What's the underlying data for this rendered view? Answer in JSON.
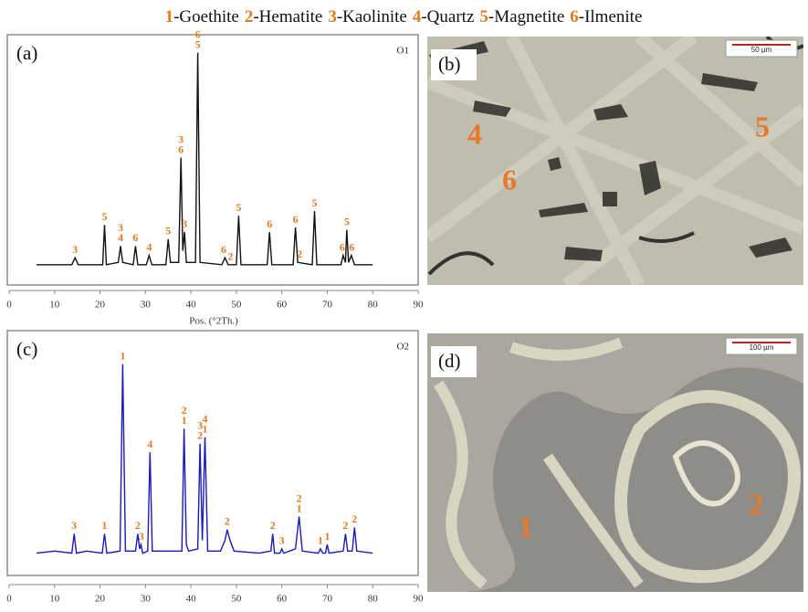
{
  "legend": [
    {
      "number": "1",
      "name": "-Goethite"
    },
    {
      "number": "2",
      "name": "-Hematite"
    },
    {
      "number": "3",
      "name": "-Kaolinite"
    },
    {
      "number": "4",
      "name": "-Quartz"
    },
    {
      "number": "5",
      "name": "-Magnetite"
    },
    {
      "number": "6",
      "name": "-Ilmenite"
    }
  ],
  "chart_data": [
    {
      "type": "line",
      "panel": "(a)",
      "sample": "O1",
      "x_label": "Pos. (°2Th.)",
      "color": "#111111",
      "label_color": "#e07b20",
      "xlim": [
        0,
        90
      ],
      "xticks": [
        0,
        10,
        20,
        30,
        40,
        50,
        60,
        70,
        80,
        90
      ],
      "ylim": [
        0,
        100
      ],
      "x": [
        6,
        10,
        13.8,
        14.5,
        15.2,
        20,
        20.6,
        21,
        21.4,
        24,
        24.5,
        25,
        27.3,
        27.8,
        28.3,
        30.2,
        30.8,
        31.4,
        34.5,
        35,
        35.5,
        37.3,
        37.8,
        38.2,
        38.6,
        39,
        41,
        41.5,
        42,
        46.8,
        47.5,
        48.2,
        50,
        50.5,
        51,
        56.8,
        57.3,
        57.8,
        62.5,
        63,
        63.5,
        66.7,
        67.2,
        67.7,
        73,
        73.5,
        74,
        74.3,
        74.7,
        75.3,
        76,
        80
      ],
      "values": [
        4,
        4,
        4,
        7,
        4,
        4,
        4,
        21,
        4,
        5,
        12,
        5,
        4,
        12,
        4,
        4,
        8,
        4,
        4,
        15,
        5,
        5,
        50,
        10,
        18,
        5,
        5,
        95,
        5,
        4,
        7,
        4,
        4,
        25,
        4,
        4,
        18,
        4,
        4,
        20,
        5,
        4,
        27,
        4,
        4,
        8,
        5,
        19,
        5,
        8,
        4,
        4
      ],
      "peak_labels": [
        {
          "x": 14.5,
          "labels": [
            "3"
          ]
        },
        {
          "x": 21,
          "labels": [
            "5"
          ]
        },
        {
          "x": 24.5,
          "labels": [
            "3",
            "4"
          ]
        },
        {
          "x": 27.8,
          "labels": [
            "6"
          ]
        },
        {
          "x": 30.8,
          "labels": [
            "4"
          ]
        },
        {
          "x": 35,
          "labels": [
            "5"
          ]
        },
        {
          "x": 37.8,
          "labels": [
            "3",
            "6"
          ]
        },
        {
          "x": 38.6,
          "labels": [
            "3"
          ]
        },
        {
          "x": 41.5,
          "labels": [
            "6",
            "5"
          ]
        },
        {
          "x": 47.2,
          "labels": [
            "6"
          ]
        },
        {
          "x": 48.7,
          "labels": [
            "2"
          ]
        },
        {
          "x": 50.5,
          "labels": [
            "5"
          ]
        },
        {
          "x": 57.3,
          "labels": [
            "6"
          ]
        },
        {
          "x": 63,
          "labels": [
            "6"
          ]
        },
        {
          "x": 63.9,
          "labels": [
            "2"
          ]
        },
        {
          "x": 67.2,
          "labels": [
            "5"
          ]
        },
        {
          "x": 73.3,
          "labels": [
            "6"
          ]
        },
        {
          "x": 74.3,
          "labels": [
            "5"
          ]
        },
        {
          "x": 75.4,
          "labels": [
            "6"
          ]
        }
      ]
    },
    {
      "type": "line",
      "panel": "(c)",
      "sample": "O2",
      "color": "#1a1ab8",
      "label_color": "#e07b20",
      "xlim": [
        0,
        90
      ],
      "xticks": [
        0,
        10,
        20,
        30,
        40,
        50,
        60,
        70,
        80,
        90
      ],
      "ylim": [
        0,
        100
      ],
      "x": [
        6,
        10,
        13.8,
        14.3,
        14.8,
        17,
        20.5,
        21,
        21.5,
        24.4,
        25,
        25.6,
        27.8,
        28.3,
        28.7,
        29,
        29.4,
        30.5,
        31,
        31.5,
        35,
        38,
        38.5,
        39,
        39.5,
        41.5,
        42,
        42.5,
        43.1,
        43.7,
        46.5,
        47.5,
        48,
        48.6,
        49.5,
        55,
        57.6,
        58,
        58.4,
        59.6,
        60,
        60.4,
        63,
        63.8,
        64.5,
        68,
        68.5,
        69,
        69.6,
        70,
        70.4,
        73.5,
        74,
        74.5,
        75.5,
        76,
        76.5,
        80
      ],
      "values": [
        4,
        5,
        4,
        13,
        4,
        5,
        4,
        13,
        4,
        5,
        92,
        5,
        5,
        13,
        6,
        8,
        4,
        5,
        51,
        5,
        5,
        5,
        62,
        8,
        5,
        6,
        55,
        10,
        58,
        5,
        5,
        10,
        15,
        10,
        5,
        4,
        5,
        13,
        4,
        4,
        6,
        4,
        6,
        21,
        5,
        4,
        6,
        4,
        4,
        8,
        4,
        5,
        13,
        5,
        5,
        16,
        5,
        4
      ],
      "peak_labels": [
        {
          "x": 14.3,
          "labels": [
            "3"
          ]
        },
        {
          "x": 21,
          "labels": [
            "1"
          ]
        },
        {
          "x": 25,
          "labels": [
            "1"
          ]
        },
        {
          "x": 28.3,
          "labels": [
            "2"
          ]
        },
        {
          "x": 29.1,
          "labels": [
            "3"
          ]
        },
        {
          "x": 31,
          "labels": [
            "4"
          ]
        },
        {
          "x": 38.5,
          "labels": [
            "2",
            "1"
          ]
        },
        {
          "x": 42,
          "labels": [
            "3",
            "2"
          ]
        },
        {
          "x": 43.1,
          "labels": [
            "4",
            "1"
          ]
        },
        {
          "x": 48,
          "labels": [
            "2"
          ]
        },
        {
          "x": 58,
          "labels": [
            "2"
          ]
        },
        {
          "x": 60,
          "labels": [
            "3"
          ]
        },
        {
          "x": 63.8,
          "labels": [
            "2",
            "1"
          ]
        },
        {
          "x": 68.5,
          "labels": [
            "1"
          ]
        },
        {
          "x": 70,
          "labels": [
            "1"
          ]
        },
        {
          "x": 74,
          "labels": [
            "2"
          ]
        },
        {
          "x": 76,
          "labels": [
            "2"
          ]
        }
      ]
    }
  ],
  "images": [
    {
      "panel": "(b)",
      "scale_bar": "50 µm",
      "labels": [
        "4",
        "6",
        "5"
      ]
    },
    {
      "panel": "(d)",
      "scale_bar": "100 µm",
      "labels": [
        "1",
        "2"
      ]
    }
  ]
}
